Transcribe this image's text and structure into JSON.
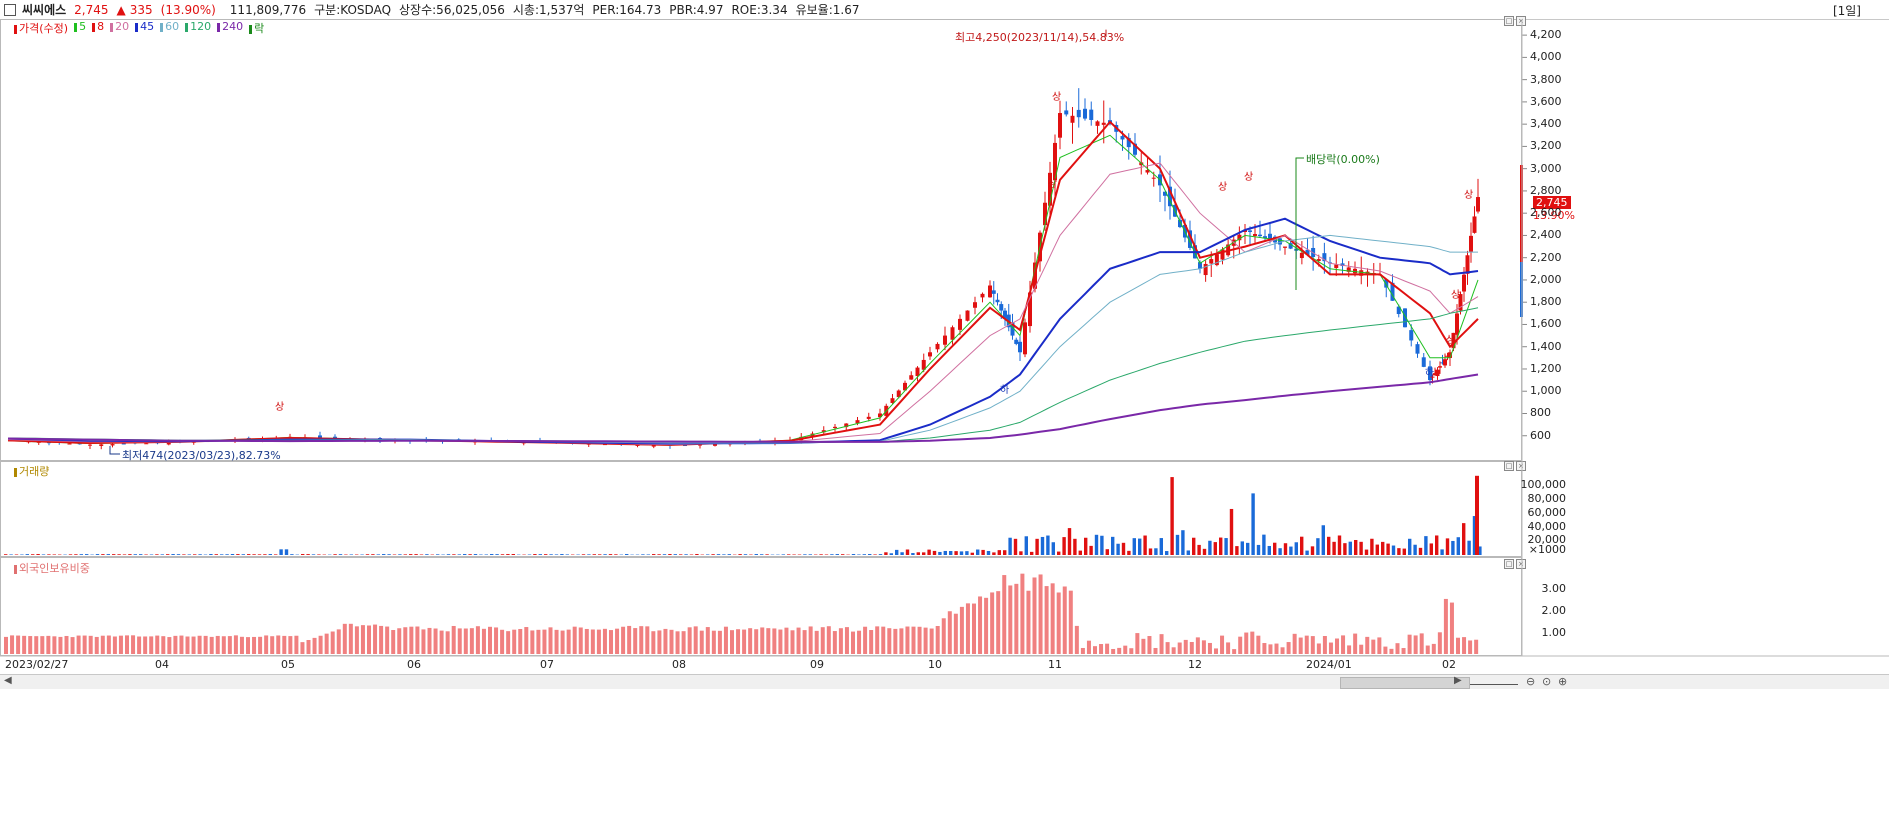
{
  "header": {
    "stock_name": "씨씨에스",
    "price": "2,745",
    "change_arrow": "▲",
    "change": "335",
    "change_pct": "(13.90%)",
    "volume": "111,809,776",
    "market": "구분:KOSDAQ",
    "shares": "상장수:56,025,056",
    "market_cap": "시총:1,537억",
    "per": "PER:164.73",
    "pbr": "PBR:4.97",
    "roe": "ROE:3.34",
    "float_ratio": "유보율:1.67",
    "period": "[1일]"
  },
  "legend": {
    "price_label": "가격(수정)",
    "ma": [
      "5",
      "8",
      "20",
      "45",
      "60",
      "120",
      "240"
    ],
    "drop_label": "락",
    "colors": {
      "price": "#e01010",
      "ma5": "#1fbf1f",
      "ma8": "#e01010",
      "ma20": "#d070a0",
      "ma45": "#1a2cc8",
      "ma60": "#70b0c8",
      "ma120": "#2aa86a",
      "ma240": "#7a28a8",
      "drop": "#1a8a1a"
    }
  },
  "annotations": {
    "high": "최고4,250(2023/11/14),54.83%",
    "low": "최저474(2023/03/23),82.73%",
    "dividend": "배당락(0.00%)",
    "limit_up": "상",
    "limit_down": "하",
    "last_price": "2,745",
    "last_pct": "13.90%"
  },
  "volume_panel": {
    "title": "거래량",
    "ticks": [
      "100,000",
      "80,000",
      "60,000",
      "40,000",
      "20,000",
      "×1000"
    ]
  },
  "foreign_panel": {
    "title": "외국인보유비중",
    "ticks": [
      "3.00",
      "2.00",
      "1.00"
    ]
  },
  "x_axis_labels": [
    "2023/02/27",
    "04",
    "05",
    "06",
    "07",
    "08",
    "09",
    "10",
    "11",
    "12",
    "2024/01",
    "02"
  ],
  "chart_data": [
    {
      "type": "candlestick",
      "title": "",
      "ylim": [
        400,
        4300
      ],
      "y_ticks": [
        600,
        800,
        1000,
        1200,
        1400,
        1600,
        1800,
        2000,
        2200,
        2400,
        2600,
        2800,
        3000,
        3200,
        3400,
        3600,
        3800,
        4000,
        4200
      ],
      "x": [
        "2023/02/27",
        "2023/03",
        "2023/04",
        "2023/05",
        "2023/06",
        "2023/07",
        "2023/08",
        "2023/09",
        "2023/09 late",
        "2023/10 early",
        "2023/10 mid",
        "2023/10 late",
        "2023/11 early",
        "2023/11/14",
        "2023/11 late",
        "2023/12 early",
        "2023/12 mid",
        "2023/12 late",
        "2024/01 early",
        "2024/01 mid",
        "2024/01 late",
        "2024/02 early",
        "2024/02 mid"
      ],
      "close": [
        560,
        520,
        540,
        590,
        560,
        540,
        510,
        560,
        800,
        1350,
        1950,
        1350,
        3500,
        3400,
        2850,
        2100,
        2450,
        2300,
        2150,
        2050,
        1100,
        1350,
        2745
      ],
      "series": [
        {
          "name": "5",
          "values": [
            555,
            530,
            545,
            585,
            560,
            540,
            515,
            560,
            760,
            1250,
            1800,
            1500,
            3100,
            3300,
            2900,
            2150,
            2400,
            2350,
            2100,
            2050,
            1300,
            1300,
            2000
          ]
        },
        {
          "name": "8",
          "values": [
            558,
            535,
            545,
            580,
            560,
            540,
            518,
            555,
            700,
            1200,
            1750,
            1550,
            2900,
            3420,
            3000,
            2200,
            2300,
            2400,
            2050,
            2050,
            1700,
            1400,
            1650
          ]
        },
        {
          "name": "20",
          "values": [
            565,
            545,
            545,
            570,
            562,
            542,
            520,
            545,
            620,
            1000,
            1500,
            1650,
            2400,
            2950,
            3050,
            2600,
            2250,
            2400,
            2150,
            2080,
            1900,
            1700,
            1850
          ]
        },
        {
          "name": "45",
          "values": [
            575,
            555,
            550,
            565,
            565,
            545,
            530,
            535,
            560,
            700,
            950,
            1150,
            1650,
            2100,
            2250,
            2250,
            2450,
            2550,
            2350,
            2200,
            2150,
            2050,
            2080
          ]
        },
        {
          "name": "60",
          "values": [
            575,
            560,
            552,
            560,
            565,
            548,
            535,
            535,
            550,
            650,
            850,
            1000,
            1400,
            1800,
            2050,
            2100,
            2250,
            2350,
            2400,
            2350,
            2300,
            2250,
            2250
          ]
        },
        {
          "name": "120",
          "values": [
            580,
            570,
            560,
            558,
            560,
            555,
            545,
            540,
            545,
            580,
            650,
            720,
            900,
            1100,
            1250,
            1350,
            1450,
            1500,
            1550,
            1600,
            1650,
            1700,
            1750
          ]
        },
        {
          "name": "240",
          "values": [
            575,
            565,
            555,
            552,
            555,
            552,
            548,
            545,
            545,
            555,
            580,
            610,
            660,
            750,
            830,
            880,
            920,
            960,
            1000,
            1040,
            1080,
            1110,
            1150
          ]
        }
      ]
    },
    {
      "type": "bar",
      "title": "거래량",
      "unit": "×1000",
      "ylim": [
        0,
        120000
      ],
      "x": [
        "2023/05",
        "2023/10",
        "2023/11",
        "2023/11 late",
        "2023/12",
        "2023/12 late",
        "2024/01",
        "2024/02 mid"
      ],
      "values": [
        8000,
        6000,
        38000,
        110000,
        55000,
        87000,
        42000,
        111810
      ]
    },
    {
      "type": "bar",
      "title": "외국인보유비중",
      "ylim": [
        0,
        3.8
      ],
      "x": [
        "2023/02",
        "2023/04",
        "2023/06",
        "2023/08",
        "2023/10",
        "2023/11",
        "2023/12",
        "2024/01",
        "2024/02"
      ],
      "values": [
        0.8,
        0.7,
        1.2,
        1.0,
        1.1,
        3.7,
        0.3,
        0.5,
        2.5
      ]
    }
  ]
}
